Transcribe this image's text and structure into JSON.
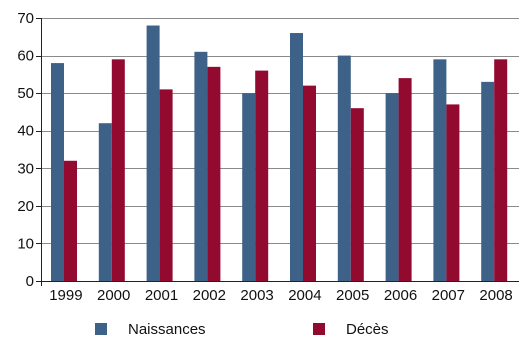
{
  "chart_data": {
    "type": "bar",
    "title": "",
    "xlabel": "",
    "ylabel": "",
    "categories": [
      "1999",
      "2000",
      "2001",
      "2002",
      "2003",
      "2004",
      "2005",
      "2006",
      "2007",
      "2008"
    ],
    "series": [
      {
        "name": "Naissances",
        "color": "#3e6287",
        "values": [
          58,
          42,
          68,
          61,
          50,
          66,
          60,
          50,
          59,
          53
        ]
      },
      {
        "name": "Décès",
        "color": "#930a30",
        "values": [
          32,
          59,
          51,
          57,
          56,
          52,
          46,
          54,
          47,
          59
        ]
      }
    ],
    "ylim": [
      0,
      70
    ],
    "yticks": [
      0,
      10,
      20,
      30,
      40,
      50,
      60,
      70
    ],
    "grid": true,
    "legend_position": "bottom"
  }
}
